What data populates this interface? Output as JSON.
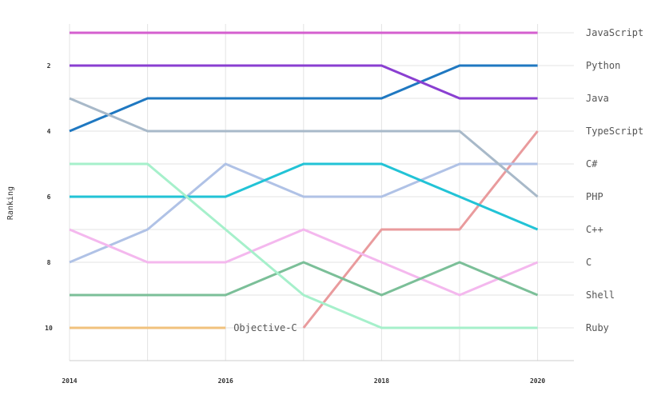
{
  "chart_data": {
    "type": "line",
    "ylabel": "Ranking",
    "x": [
      2014,
      2015,
      2016,
      2017,
      2018,
      2019,
      2020
    ],
    "x_tick_labels": [
      "2014",
      "2016",
      "2018",
      "2020"
    ],
    "y_tick_labels": [
      "2",
      "4",
      "6",
      "8",
      "10"
    ],
    "ylim": [
      11,
      1
    ],
    "y_inverted": true,
    "grid": true,
    "series": [
      {
        "name": "JavaScript",
        "color": "#d45fcf",
        "values": [
          1,
          1,
          1,
          1,
          1,
          1,
          1
        ]
      },
      {
        "name": "Python",
        "color": "#1f78c1",
        "values": [
          4,
          3,
          3,
          3,
          3,
          2,
          2
        ]
      },
      {
        "name": "Java",
        "color": "#8a3fd1",
        "values": [
          2,
          2,
          2,
          2,
          2,
          3,
          3
        ]
      },
      {
        "name": "TypeScript",
        "color": "#e99b9d",
        "values": [
          null,
          null,
          null,
          10,
          7,
          7,
          4
        ]
      },
      {
        "name": "C#",
        "color": "#b0c2e6",
        "values": [
          8,
          7,
          5,
          6,
          6,
          5,
          5
        ]
      },
      {
        "name": "PHP",
        "color": "#a8b9c9",
        "values": [
          3,
          4,
          4,
          4,
          4,
          4,
          6
        ]
      },
      {
        "name": "C++",
        "color": "#22c3d6",
        "values": [
          6,
          6,
          6,
          5,
          5,
          6,
          7
        ]
      },
      {
        "name": "C",
        "color": "#f4b8ee",
        "values": [
          7,
          8,
          8,
          7,
          8,
          9,
          8
        ]
      },
      {
        "name": "Shell",
        "color": "#7bbf98",
        "values": [
          9,
          9,
          9,
          8,
          9,
          8,
          9
        ]
      },
      {
        "name": "Ruby",
        "color": "#a6f0cb",
        "values": [
          5,
          5,
          7,
          9,
          10,
          10,
          10
        ]
      },
      {
        "name": "Objective-C",
        "color": "#f1c27d",
        "values": [
          10,
          10,
          10,
          null,
          null,
          null,
          null
        ]
      }
    ]
  }
}
